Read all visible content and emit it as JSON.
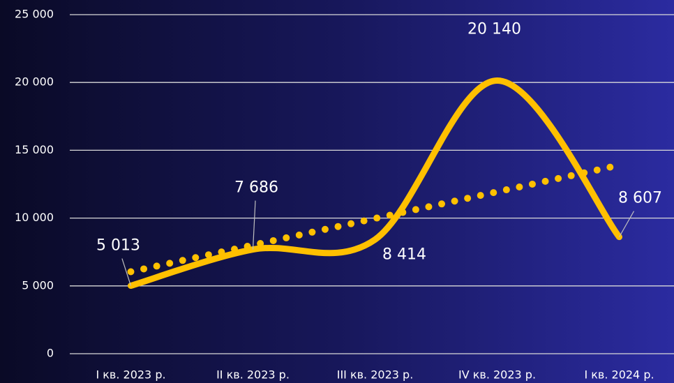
{
  "chart_data": {
    "type": "line",
    "categories": [
      "I кв. 2023 р.",
      "II кв. 2023 р.",
      "III кв. 2023 р.",
      "IV кв. 2023 р.",
      "I кв. 2024 р."
    ],
    "values": [
      5013,
      7686,
      8414,
      20140,
      8607
    ],
    "value_labels": [
      "5 013",
      "7 686",
      "8 414",
      "20 140",
      "8 607"
    ],
    "color": "#ffc000",
    "smooth": true,
    "trendline": "linear",
    "ylim": [
      0,
      25000
    ],
    "yticks": [
      0,
      {
        "value": 5000,
        "label": "5 000"
      },
      {
        "value": 10000,
        "label": "10 000"
      },
      {
        "value": 15000,
        "label": "15 000"
      },
      {
        "value": 20000,
        "label": "20 000"
      },
      {
        "value": 25000,
        "label": "25 000"
      }
    ],
    "grid": true
  }
}
